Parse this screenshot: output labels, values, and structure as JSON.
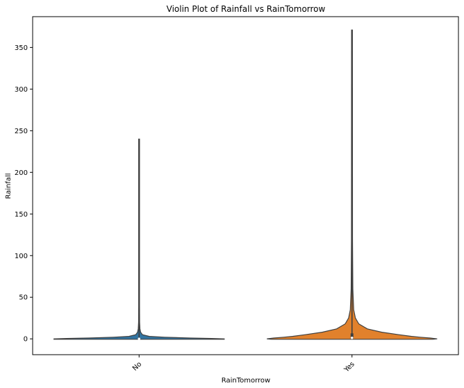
{
  "chart_data": {
    "type": "violin",
    "title": "Violin Plot of Rainfall vs RainTomorrow",
    "xlabel": "RainTomorrow",
    "ylabel": "Rainfall",
    "categories": [
      "No",
      "Yes"
    ],
    "ylim": [
      -19,
      387
    ],
    "yticks": [
      0,
      50,
      100,
      150,
      200,
      250,
      300,
      350
    ],
    "grid": false,
    "legend": "none",
    "series": [
      {
        "category": "No",
        "color": "#3274a1",
        "min": 0,
        "max": 240,
        "q1": 0,
        "median": 0,
        "q3": 0.4,
        "density_profile": [
          [
            -0.5,
            1.0
          ],
          [
            0,
            1.0
          ],
          [
            0.5,
            0.85
          ],
          [
            1,
            0.6
          ],
          [
            2,
            0.3
          ],
          [
            3,
            0.12
          ],
          [
            5,
            0.04
          ],
          [
            8,
            0.018
          ],
          [
            12,
            0.01
          ],
          [
            20,
            0.006
          ],
          [
            40,
            0.004
          ],
          [
            80,
            0.003
          ],
          [
            240,
            0.003
          ]
        ]
      },
      {
        "category": "Yes",
        "color": "#e1812c",
        "min": 0,
        "max": 371,
        "q1": 0.1,
        "median": 1.2,
        "q3": 6.6,
        "density_profile": [
          [
            -0.5,
            0.95
          ],
          [
            0,
            1.0
          ],
          [
            1,
            0.92
          ],
          [
            2,
            0.8
          ],
          [
            3,
            0.7
          ],
          [
            5,
            0.55
          ],
          [
            8,
            0.35
          ],
          [
            12,
            0.18
          ],
          [
            18,
            0.08
          ],
          [
            25,
            0.04
          ],
          [
            35,
            0.02
          ],
          [
            60,
            0.01
          ],
          [
            120,
            0.006
          ],
          [
            371,
            0.004
          ]
        ]
      }
    ]
  }
}
